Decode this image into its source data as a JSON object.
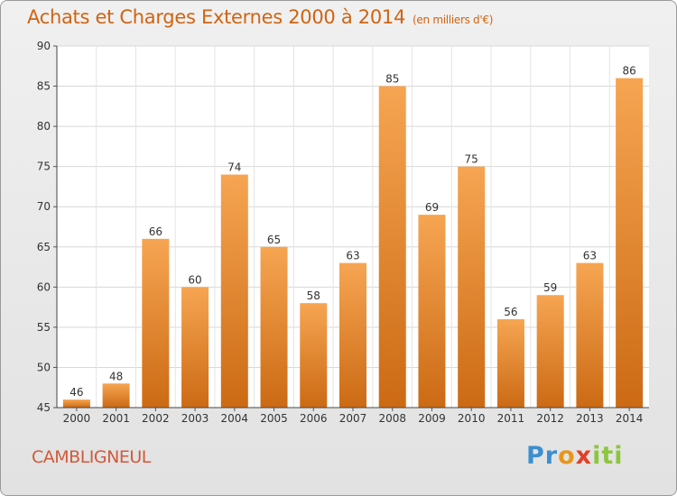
{
  "title": "Achats et Charges Externes 2000 à 2014",
  "unit": "(en milliers d'€)",
  "place": "CAMBLIGNEUL",
  "logo": {
    "part1": "Pr",
    "part2": "o",
    "part3": "x",
    "part4": "iti"
  },
  "colors": {
    "bar_light": "#f6a552",
    "bar_dark": "#cc6a14",
    "title": "#d06412",
    "place": "#d05a3c"
  },
  "chart_data": {
    "type": "bar",
    "categories": [
      "2000",
      "2001",
      "2002",
      "2003",
      "2004",
      "2005",
      "2006",
      "2007",
      "2008",
      "2009",
      "2010",
      "2011",
      "2012",
      "2013",
      "2014"
    ],
    "values": [
      46,
      48,
      66,
      60,
      74,
      65,
      58,
      63,
      85,
      69,
      75,
      56,
      59,
      63,
      86
    ],
    "yticks": [
      45,
      50,
      55,
      60,
      65,
      70,
      75,
      80,
      85,
      90
    ],
    "ylim": [
      45,
      90
    ],
    "grid": true
  }
}
